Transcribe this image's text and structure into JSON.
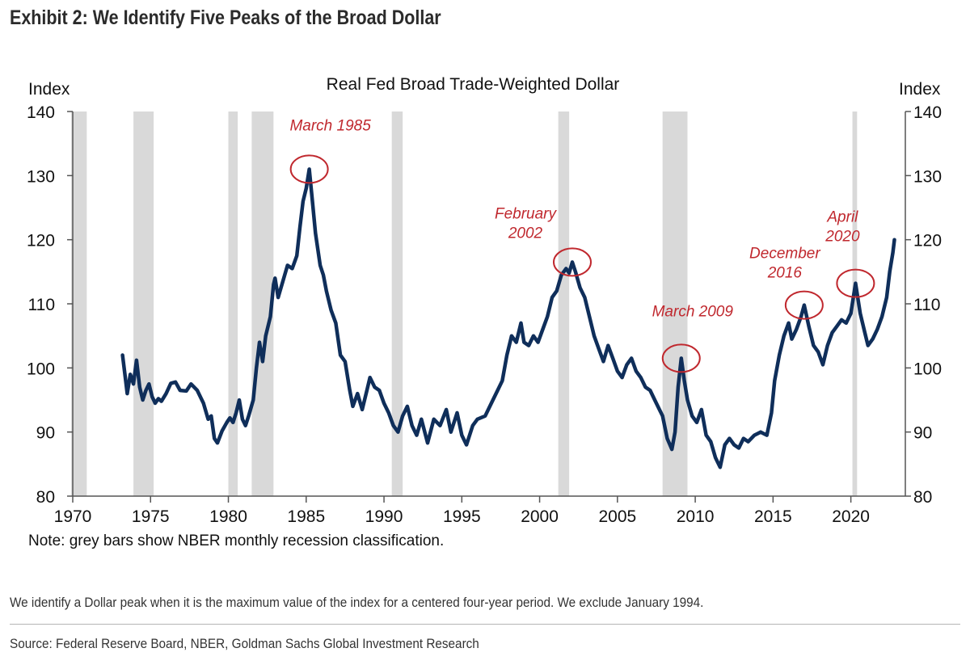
{
  "exhibit_title": "Exhibit 2: We Identify Five Peaks of the Broad Dollar",
  "footnote": "We identify a Dollar peak when it is the maximum value of the index for a centered four-year period. We exclude January 1994.",
  "source": "Source: Federal Reserve Board, NBER, Goldman Sachs Global Investment Research",
  "colors": {
    "line": "#0f2e5a",
    "recession": "#d9d9d9",
    "annotation": "#c0282e",
    "axis": "#555555"
  },
  "chart_data": {
    "type": "line",
    "title": "Real Fed Broad Trade-Weighted Dollar",
    "ylabel_left": "Index",
    "ylabel_right": "Index",
    "note": "Note: grey bars show NBER monthly recession classification.",
    "xlim": [
      1970,
      2023.5
    ],
    "ylim": [
      80,
      140
    ],
    "x_ticks": [
      1970,
      1975,
      1980,
      1985,
      1990,
      1995,
      2000,
      2005,
      2010,
      2015,
      2020
    ],
    "y_ticks": [
      80,
      90,
      100,
      110,
      120,
      130,
      140
    ],
    "grid": false,
    "recessions": [
      [
        1969.9,
        1970.9
      ],
      [
        1973.9,
        1975.2
      ],
      [
        1980.0,
        1980.6
      ],
      [
        1981.5,
        1982.9
      ],
      [
        1990.5,
        1991.2
      ],
      [
        2001.2,
        2001.9
      ],
      [
        2007.9,
        2009.5
      ],
      [
        2020.1,
        2020.4
      ]
    ],
    "series": [
      {
        "values": [
          [
            1973.2,
            102
          ],
          [
            1973.4,
            98
          ],
          [
            1973.5,
            96
          ],
          [
            1973.7,
            99
          ],
          [
            1973.9,
            97.5
          ],
          [
            1974.1,
            101.2
          ],
          [
            1974.3,
            97
          ],
          [
            1974.5,
            95
          ],
          [
            1974.7,
            96.5
          ],
          [
            1974.9,
            97.5
          ],
          [
            1975.1,
            95.5
          ],
          [
            1975.3,
            94.5
          ],
          [
            1975.5,
            95.2
          ],
          [
            1975.7,
            94.8
          ],
          [
            1976.0,
            96
          ],
          [
            1976.3,
            97.6
          ],
          [
            1976.6,
            97.8
          ],
          [
            1976.9,
            96.5
          ],
          [
            1977.3,
            96.4
          ],
          [
            1977.6,
            97.5
          ],
          [
            1978.0,
            96.5
          ],
          [
            1978.4,
            94.5
          ],
          [
            1978.7,
            92
          ],
          [
            1978.9,
            92.5
          ],
          [
            1979.1,
            89
          ],
          [
            1979.3,
            88.3
          ],
          [
            1979.6,
            90.2
          ],
          [
            1979.9,
            91.5
          ],
          [
            1980.1,
            92.2
          ],
          [
            1980.3,
            91.5
          ],
          [
            1980.5,
            93
          ],
          [
            1980.7,
            95
          ],
          [
            1980.9,
            92
          ],
          [
            1981.1,
            91
          ],
          [
            1981.3,
            92.5
          ],
          [
            1981.6,
            95
          ],
          [
            1981.8,
            100
          ],
          [
            1982.0,
            104
          ],
          [
            1982.2,
            101
          ],
          [
            1982.4,
            105
          ],
          [
            1982.7,
            108
          ],
          [
            1982.9,
            113
          ],
          [
            1983.0,
            114
          ],
          [
            1983.2,
            111
          ],
          [
            1983.5,
            113.5
          ],
          [
            1983.8,
            116
          ],
          [
            1984.1,
            115.5
          ],
          [
            1984.4,
            117.5
          ],
          [
            1984.6,
            122
          ],
          [
            1984.8,
            126
          ],
          [
            1985.0,
            128
          ],
          [
            1985.2,
            131
          ],
          [
            1985.4,
            126
          ],
          [
            1985.6,
            121
          ],
          [
            1985.9,
            116
          ],
          [
            1986.1,
            114.5
          ],
          [
            1986.3,
            112
          ],
          [
            1986.6,
            109
          ],
          [
            1986.9,
            107
          ],
          [
            1987.2,
            102
          ],
          [
            1987.5,
            101
          ],
          [
            1987.8,
            96.5
          ],
          [
            1988.0,
            94
          ],
          [
            1988.3,
            96
          ],
          [
            1988.6,
            93.5
          ],
          [
            1988.9,
            96.5
          ],
          [
            1989.1,
            98.5
          ],
          [
            1989.4,
            97
          ],
          [
            1989.7,
            96.5
          ],
          [
            1990.0,
            94.5
          ],
          [
            1990.3,
            93
          ],
          [
            1990.6,
            91
          ],
          [
            1990.9,
            90
          ],
          [
            1991.2,
            92.5
          ],
          [
            1991.5,
            94
          ],
          [
            1991.8,
            91
          ],
          [
            1992.1,
            89.5
          ],
          [
            1992.4,
            92
          ],
          [
            1992.8,
            88.3
          ],
          [
            1993.2,
            92
          ],
          [
            1993.6,
            91
          ],
          [
            1994.0,
            93.5
          ],
          [
            1994.3,
            90
          ],
          [
            1994.7,
            93
          ],
          [
            1995.0,
            89.5
          ],
          [
            1995.3,
            88
          ],
          [
            1995.7,
            91
          ],
          [
            1996.0,
            92
          ],
          [
            1996.5,
            92.5
          ],
          [
            1997.0,
            95
          ],
          [
            1997.3,
            96.5
          ],
          [
            1997.6,
            98
          ],
          [
            1997.9,
            102
          ],
          [
            1998.2,
            105
          ],
          [
            1998.5,
            104
          ],
          [
            1998.8,
            107
          ],
          [
            1999.0,
            104
          ],
          [
            1999.3,
            103.5
          ],
          [
            1999.6,
            105
          ],
          [
            1999.9,
            104
          ],
          [
            2000.2,
            106
          ],
          [
            2000.5,
            108
          ],
          [
            2000.8,
            111
          ],
          [
            2001.1,
            112
          ],
          [
            2001.4,
            114.5
          ],
          [
            2001.7,
            115.5
          ],
          [
            2001.9,
            114.8
          ],
          [
            2002.1,
            116.5
          ],
          [
            2002.3,
            115
          ],
          [
            2002.6,
            112.5
          ],
          [
            2002.9,
            111
          ],
          [
            2003.2,
            108
          ],
          [
            2003.5,
            105
          ],
          [
            2003.8,
            103
          ],
          [
            2004.1,
            101
          ],
          [
            2004.4,
            103.5
          ],
          [
            2004.7,
            101.5
          ],
          [
            2005.0,
            99.5
          ],
          [
            2005.3,
            98.5
          ],
          [
            2005.6,
            100.5
          ],
          [
            2005.9,
            101.5
          ],
          [
            2006.2,
            99.5
          ],
          [
            2006.5,
            98.5
          ],
          [
            2006.8,
            97
          ],
          [
            2007.1,
            96.5
          ],
          [
            2007.4,
            95
          ],
          [
            2007.7,
            93.5
          ],
          [
            2007.9,
            92.5
          ],
          [
            2008.2,
            89
          ],
          [
            2008.5,
            87.3
          ],
          [
            2008.7,
            90
          ],
          [
            2008.9,
            97
          ],
          [
            2009.1,
            101.5
          ],
          [
            2009.3,
            98
          ],
          [
            2009.5,
            95
          ],
          [
            2009.8,
            92.5
          ],
          [
            2010.1,
            91.5
          ],
          [
            2010.4,
            93.5
          ],
          [
            2010.7,
            89.5
          ],
          [
            2011.0,
            88.5
          ],
          [
            2011.3,
            86
          ],
          [
            2011.6,
            84.5
          ],
          [
            2011.9,
            88
          ],
          [
            2012.2,
            89
          ],
          [
            2012.5,
            88
          ],
          [
            2012.8,
            87.5
          ],
          [
            2013.1,
            89
          ],
          [
            2013.4,
            88.5
          ],
          [
            2013.8,
            89.5
          ],
          [
            2014.2,
            90
          ],
          [
            2014.6,
            89.5
          ],
          [
            2014.9,
            93
          ],
          [
            2015.1,
            98
          ],
          [
            2015.4,
            102
          ],
          [
            2015.7,
            105
          ],
          [
            2016.0,
            107
          ],
          [
            2016.2,
            104.5
          ],
          [
            2016.5,
            106
          ],
          [
            2016.8,
            108
          ],
          [
            2017.0,
            109.8
          ],
          [
            2017.3,
            106.5
          ],
          [
            2017.6,
            103.5
          ],
          [
            2017.9,
            102.5
          ],
          [
            2018.2,
            100.5
          ],
          [
            2018.5,
            103.5
          ],
          [
            2018.8,
            105.5
          ],
          [
            2019.1,
            106.5
          ],
          [
            2019.4,
            107.5
          ],
          [
            2019.7,
            107
          ],
          [
            2020.0,
            108.5
          ],
          [
            2020.3,
            113.2
          ],
          [
            2020.6,
            108.5
          ],
          [
            2020.9,
            105.5
          ],
          [
            2021.1,
            103.5
          ],
          [
            2021.4,
            104.5
          ],
          [
            2021.7,
            106
          ],
          [
            2022.0,
            108
          ],
          [
            2022.3,
            111
          ],
          [
            2022.5,
            115
          ],
          [
            2022.7,
            118
          ],
          [
            2022.8,
            120
          ]
        ]
      }
    ],
    "annotations": [
      {
        "label": [
          "March 1985"
        ],
        "x": 1985.2,
        "y": 131.0
      },
      {
        "label": [
          "February",
          "2002"
        ],
        "x": 2002.1,
        "y": 116.5
      },
      {
        "label": [
          "March 2009"
        ],
        "x": 2009.1,
        "y": 101.5
      },
      {
        "label": [
          "December",
          "2016"
        ],
        "x": 2017.0,
        "y": 109.8
      },
      {
        "label": [
          "April",
          "2020"
        ],
        "x": 2020.3,
        "y": 113.2
      }
    ]
  }
}
